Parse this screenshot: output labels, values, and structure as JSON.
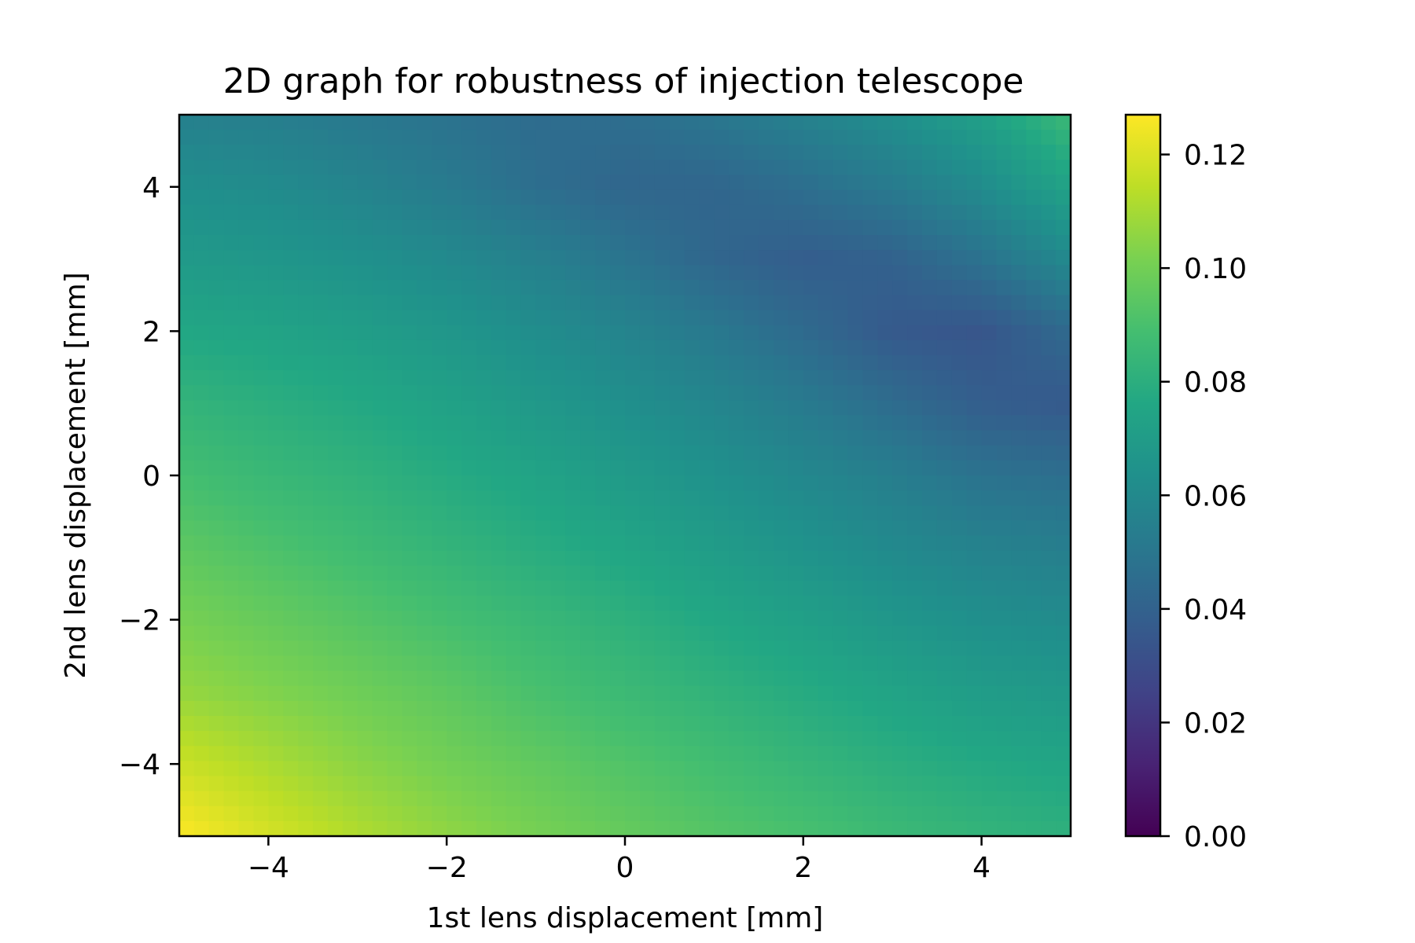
{
  "chart_data": {
    "type": "heatmap",
    "title": "2D graph for robustness of injection telescope",
    "xlabel": "1st lens displacement [mm]",
    "ylabel": "2nd lens displacement [mm]",
    "xlim": [
      -5,
      5
    ],
    "ylim": [
      -5,
      5
    ],
    "xticks": [
      -4,
      -2,
      0,
      2,
      4
    ],
    "yticks": [
      -4,
      -2,
      0,
      2,
      4
    ],
    "xtick_labels": [
      "−4",
      "−2",
      "0",
      "2",
      "4"
    ],
    "ytick_labels": [
      "−4",
      "−2",
      "0",
      "2",
      "4"
    ],
    "colormap": "viridis",
    "colorbar": {
      "min": 0.0,
      "max": 0.127,
      "ticks": [
        0.0,
        0.02,
        0.04,
        0.06,
        0.08,
        0.1,
        0.12
      ],
      "tick_labels": [
        "0.00",
        "0.02",
        "0.04",
        "0.06",
        "0.08",
        "0.10",
        "0.12"
      ]
    },
    "grid_x": [
      -5,
      -4,
      -3,
      -2,
      -1,
      0,
      1,
      2,
      3,
      4,
      5
    ],
    "grid_y": [
      5,
      4,
      3,
      2,
      1,
      0,
      -1,
      -2,
      -3,
      -4,
      -5
    ],
    "z": [
      [
        0.055,
        0.054,
        0.051,
        0.048,
        0.045,
        0.046,
        0.05,
        0.056,
        0.063,
        0.072,
        0.086
      ],
      [
        0.063,
        0.061,
        0.057,
        0.052,
        0.046,
        0.042,
        0.042,
        0.046,
        0.052,
        0.061,
        0.074
      ],
      [
        0.069,
        0.067,
        0.064,
        0.06,
        0.055,
        0.049,
        0.042,
        0.038,
        0.04,
        0.048,
        0.06
      ],
      [
        0.076,
        0.074,
        0.071,
        0.067,
        0.062,
        0.057,
        0.051,
        0.044,
        0.036,
        0.034,
        0.044
      ],
      [
        0.083,
        0.08,
        0.077,
        0.073,
        0.068,
        0.063,
        0.058,
        0.052,
        0.045,
        0.038,
        0.036
      ],
      [
        0.089,
        0.085,
        0.082,
        0.078,
        0.074,
        0.069,
        0.064,
        0.059,
        0.054,
        0.048,
        0.046
      ],
      [
        0.095,
        0.091,
        0.087,
        0.083,
        0.079,
        0.075,
        0.07,
        0.065,
        0.06,
        0.056,
        0.054
      ],
      [
        0.101,
        0.097,
        0.093,
        0.089,
        0.085,
        0.081,
        0.076,
        0.072,
        0.067,
        0.063,
        0.061
      ],
      [
        0.107,
        0.103,
        0.099,
        0.095,
        0.09,
        0.086,
        0.082,
        0.078,
        0.074,
        0.07,
        0.068
      ],
      [
        0.117,
        0.111,
        0.105,
        0.1,
        0.096,
        0.092,
        0.088,
        0.084,
        0.08,
        0.077,
        0.075
      ],
      [
        0.127,
        0.119,
        0.112,
        0.106,
        0.101,
        0.097,
        0.093,
        0.09,
        0.086,
        0.083,
        0.081
      ]
    ]
  }
}
